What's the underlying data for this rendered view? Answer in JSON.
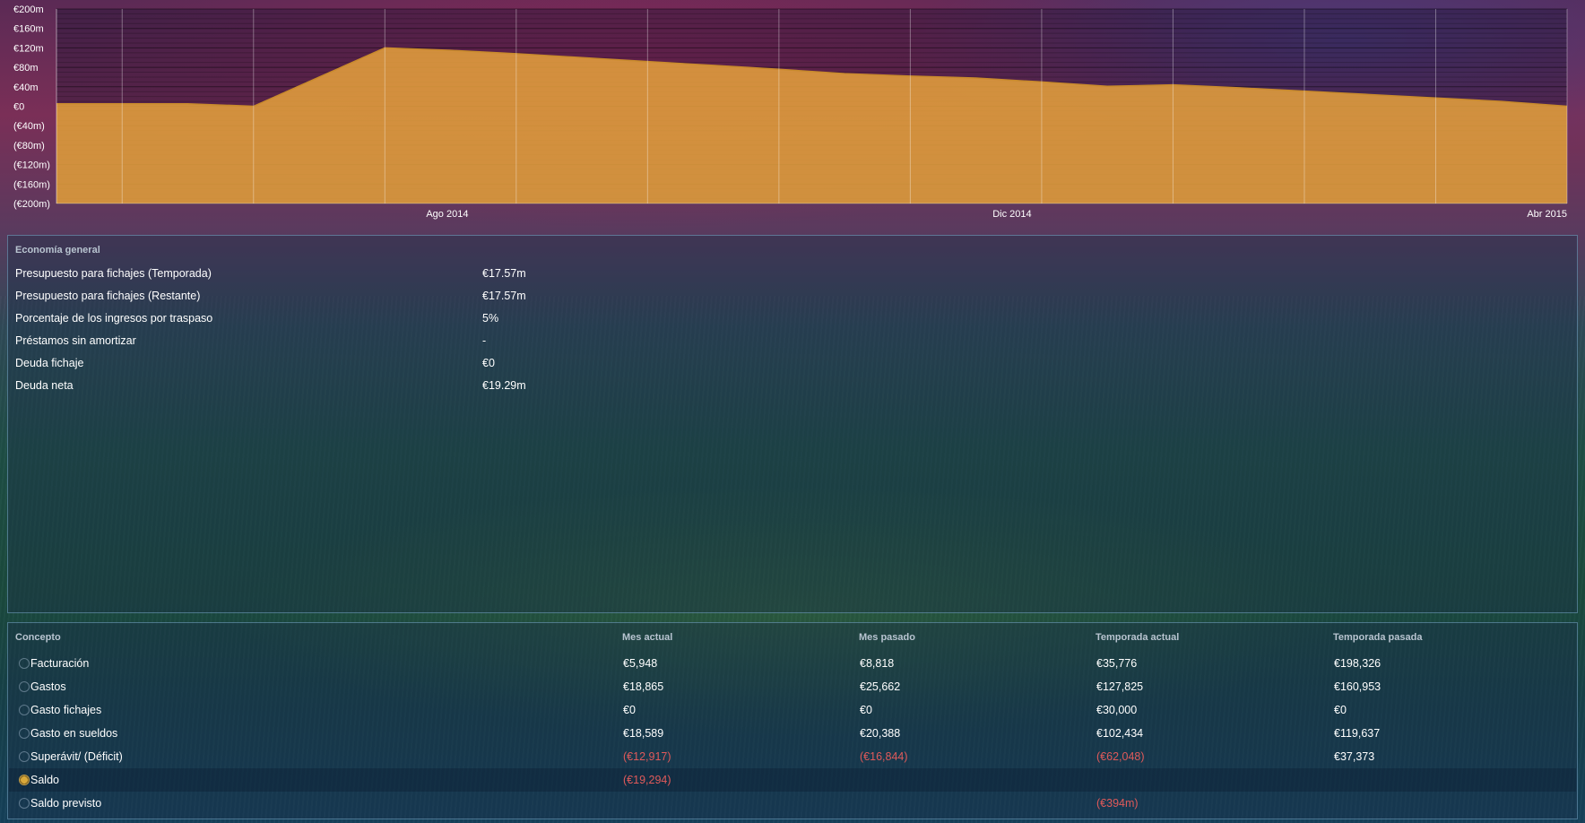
{
  "colors": {
    "area_fill": "#e6a23c",
    "negative": "#e05a5a",
    "panel_border": "#78aac8"
  },
  "chart_data": {
    "type": "area",
    "series": [
      {
        "values": [
          5,
          5,
          5,
          0,
          60,
          120,
          115,
          108,
          100,
          92,
          84,
          76,
          67,
          62,
          58,
          50,
          41,
          44,
          38,
          31,
          24,
          17,
          10,
          0
        ]
      }
    ],
    "x": [
      0,
      1,
      2,
      3,
      4,
      5,
      6,
      7,
      8,
      9,
      10,
      11,
      12,
      13,
      14,
      15,
      16,
      17,
      18,
      19,
      20,
      21,
      22,
      23
    ],
    "ylim": [
      -200,
      200
    ],
    "y_ticks": [
      "€200m",
      "€160m",
      "€120m",
      "€80m",
      "€40m",
      "€0",
      "(€40m)",
      "(€80m)",
      "(€120m)",
      "(€160m)",
      "(€200m)"
    ],
    "x_ticks": [
      {
        "label": "Ago 2014",
        "x": 5.95
      },
      {
        "label": "Dic 2014",
        "x": 14.55
      },
      {
        "label": "Abr 2015",
        "x": 23
      }
    ],
    "grid": true
  },
  "economy": {
    "title": "Economía general",
    "rows": [
      {
        "label": "Presupuesto para fichajes (Temporada)",
        "value": "€17.57m"
      },
      {
        "label": "Presupuesto para fichajes (Restante)",
        "value": "€17.57m"
      },
      {
        "label": "Porcentaje de los ingresos por traspaso",
        "value": "5%"
      },
      {
        "label": "Préstamos sin amortizar",
        "value": "-"
      },
      {
        "label": "Deuda fichaje",
        "value": "€0"
      },
      {
        "label": "Deuda neta",
        "value": "€19.29m"
      }
    ]
  },
  "table": {
    "headers": [
      "Concepto",
      "Mes actual",
      "Mes pasado",
      "Temporada actual",
      "Temporada pasada"
    ],
    "rows": [
      {
        "concept": "Facturación",
        "cur": "€5,948",
        "prev": "€8,818",
        "season": "€35,776",
        "last": "€198,326",
        "icon": "loading-ring-icon"
      },
      {
        "concept": "Gastos",
        "cur": "€18,865",
        "prev": "€25,662",
        "season": "€127,825",
        "last": "€160,953",
        "icon": "loading-ring-icon"
      },
      {
        "concept": "Gasto fichajes",
        "cur": "€0",
        "prev": "€0",
        "season": "€30,000",
        "last": "€0",
        "icon": "loading-ring-icon"
      },
      {
        "concept": "Gasto en sueldos",
        "cur": "€18,589",
        "prev": "€20,388",
        "season": "€102,434",
        "last": "€119,637",
        "icon": "loading-ring-icon"
      },
      {
        "concept": "Superávit/ (Déficit)",
        "cur": "(€12,917)",
        "prev": "(€16,844)",
        "season": "(€62,048)",
        "last": "€37,373",
        "icon": "loading-ring-icon"
      },
      {
        "concept": "Saldo",
        "cur": "(€19,294)",
        "prev": "",
        "season": "",
        "last": "",
        "icon": "coin-icon"
      },
      {
        "concept": "Saldo previsto",
        "cur": "",
        "prev": "",
        "season": "(€394m)",
        "last": "",
        "icon": "loading-ring-icon"
      }
    ]
  }
}
